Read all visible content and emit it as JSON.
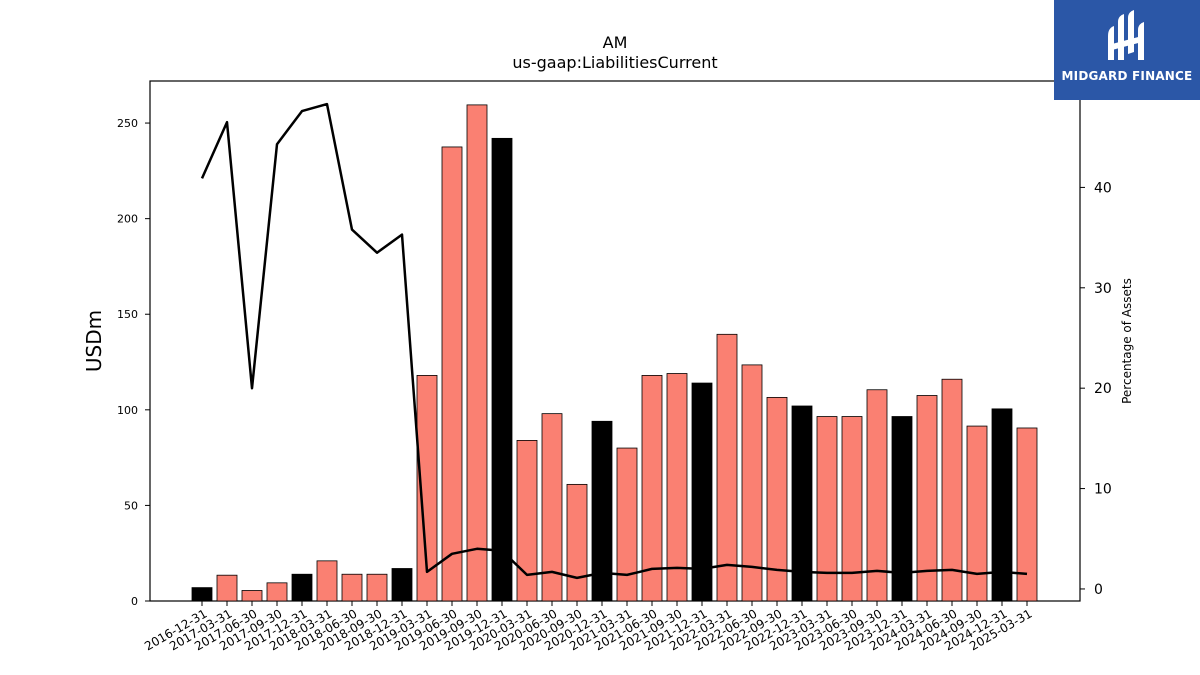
{
  "brand": {
    "name": "MIDGARD FINANCE",
    "bg": "#2b57a7"
  },
  "chart_data": {
    "type": "bar",
    "title": "AM",
    "subtitle": "us-gaap:LiabilitiesCurrent",
    "ylabel": "USDm",
    "y2label": "Percentage of Assets",
    "ylim": [
      0,
      272
    ],
    "y2lim": [
      -1.2,
      50.6
    ],
    "yticks": [
      0,
      50,
      100,
      150,
      200,
      250
    ],
    "y2ticks": [
      0,
      10,
      20,
      30,
      40
    ],
    "categories": [
      "2016-12-31",
      "2017-03-31",
      "2017-06-30",
      "2017-09-30",
      "2017-12-31",
      "2018-03-31",
      "2018-06-30",
      "2018-09-30",
      "2018-12-31",
      "2019-03-31",
      "2019-06-30",
      "2019-09-30",
      "2019-12-31",
      "2020-03-31",
      "2020-06-30",
      "2020-09-30",
      "2020-12-31",
      "2021-03-31",
      "2021-06-30",
      "2021-09-30",
      "2021-12-31",
      "2022-03-31",
      "2022-06-30",
      "2022-09-30",
      "2022-12-31",
      "2023-03-31",
      "2023-06-30",
      "2023-09-30",
      "2023-12-31",
      "2024-03-31",
      "2024-06-30",
      "2024-09-30",
      "2024-12-31",
      "2025-03-31"
    ],
    "series": [
      {
        "values": [
          7,
          13.5,
          5.5,
          9.5,
          14,
          21,
          14,
          14,
          17,
          118,
          237.5,
          259.5,
          242,
          84,
          98,
          61,
          94,
          80,
          118,
          119,
          114,
          139.5,
          123.5,
          106.5,
          102,
          96.5,
          96.5,
          110.5,
          96.5,
          107.5,
          116,
          91.5,
          100.5,
          90.5
        ]
      },
      {
        "axis": "right",
        "values": [
          40.9,
          46.5,
          20.0,
          44.3,
          47.6,
          48.3,
          35.8,
          33.5,
          35.3,
          1.7,
          3.5,
          4.0,
          3.8,
          1.4,
          1.7,
          1.1,
          1.6,
          1.4,
          2.0,
          2.1,
          2.0,
          2.4,
          2.2,
          1.9,
          1.7,
          1.6,
          1.6,
          1.8,
          1.6,
          1.8,
          1.9,
          1.5,
          1.7,
          1.5
        ]
      }
    ],
    "bar_colors": [
      "#000000",
      "#fa8072",
      "#fa8072",
      "#fa8072",
      "#000000",
      "#fa8072",
      "#fa8072",
      "#fa8072",
      "#000000",
      "#fa8072",
      "#fa8072",
      "#fa8072",
      "#000000",
      "#fa8072",
      "#fa8072",
      "#fa8072",
      "#000000",
      "#fa8072",
      "#fa8072",
      "#fa8072",
      "#000000",
      "#fa8072",
      "#fa8072",
      "#fa8072",
      "#000000",
      "#fa8072",
      "#fa8072",
      "#fa8072",
      "#000000",
      "#fa8072",
      "#fa8072",
      "#fa8072",
      "#000000",
      "#fa8072"
    ],
    "line_color": "#000000",
    "grid": false,
    "legend": "none"
  }
}
